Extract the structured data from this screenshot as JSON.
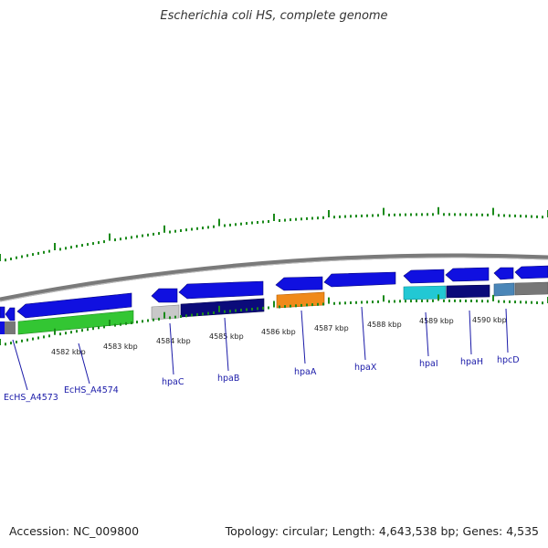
{
  "title": "Escherichia coli HS, complete genome",
  "footer": {
    "accession": "Accession: NC_009800",
    "topology": "Topology: circular; Length: 4,643,538 bp; Genes: 4,535"
  },
  "colors": {
    "blue": "#1010e0",
    "navy": "#0b0b7a",
    "green": "#33c633",
    "orange": "#f08a1a",
    "cyan": "#22c8d4",
    "steel": "#4a86b8",
    "gray": "#a8a8a8",
    "tick": "#1a8a1a",
    "label": "#1a1aa8"
  },
  "ticks": [
    "4582 kbp",
    "4583 kbp",
    "4584 kbp",
    "4585 kbp",
    "4586 kbp",
    "4587 kbp",
    "4588 kbp",
    "4589 kbp",
    "4590 kbp"
  ],
  "genes": [
    "EcHS_A4573",
    "EcHS_A4574",
    "hpaC",
    "hpaB",
    "hpaA",
    "hpaX",
    "hpaI",
    "hpaH",
    "hpcD"
  ]
}
